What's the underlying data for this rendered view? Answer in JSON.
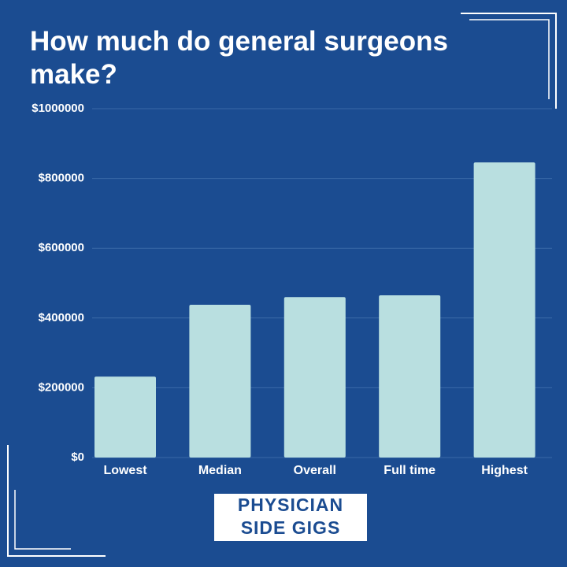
{
  "chart_data": {
    "type": "bar",
    "title": "How much do general surgeons make?",
    "categories": [
      "Lowest",
      "Median",
      "Overall",
      "Full time",
      "Highest"
    ],
    "values": [
      232000,
      438000,
      460000,
      465000,
      846000
    ],
    "color": "#b9dfe0",
    "ylim": [
      0,
      1000000
    ],
    "yticks": [
      {
        "value": 0,
        "label": "$0"
      },
      {
        "value": 200000,
        "label": "$200000"
      },
      {
        "value": 400000,
        "label": "$400000"
      },
      {
        "value": 600000,
        "label": "$600000"
      },
      {
        "value": 800000,
        "label": "$800000"
      },
      {
        "value": 1000000,
        "label": "$1000000"
      }
    ],
    "grid": true,
    "annotations": [
      "PHYSICIAN",
      "SIDE GIGS"
    ]
  }
}
